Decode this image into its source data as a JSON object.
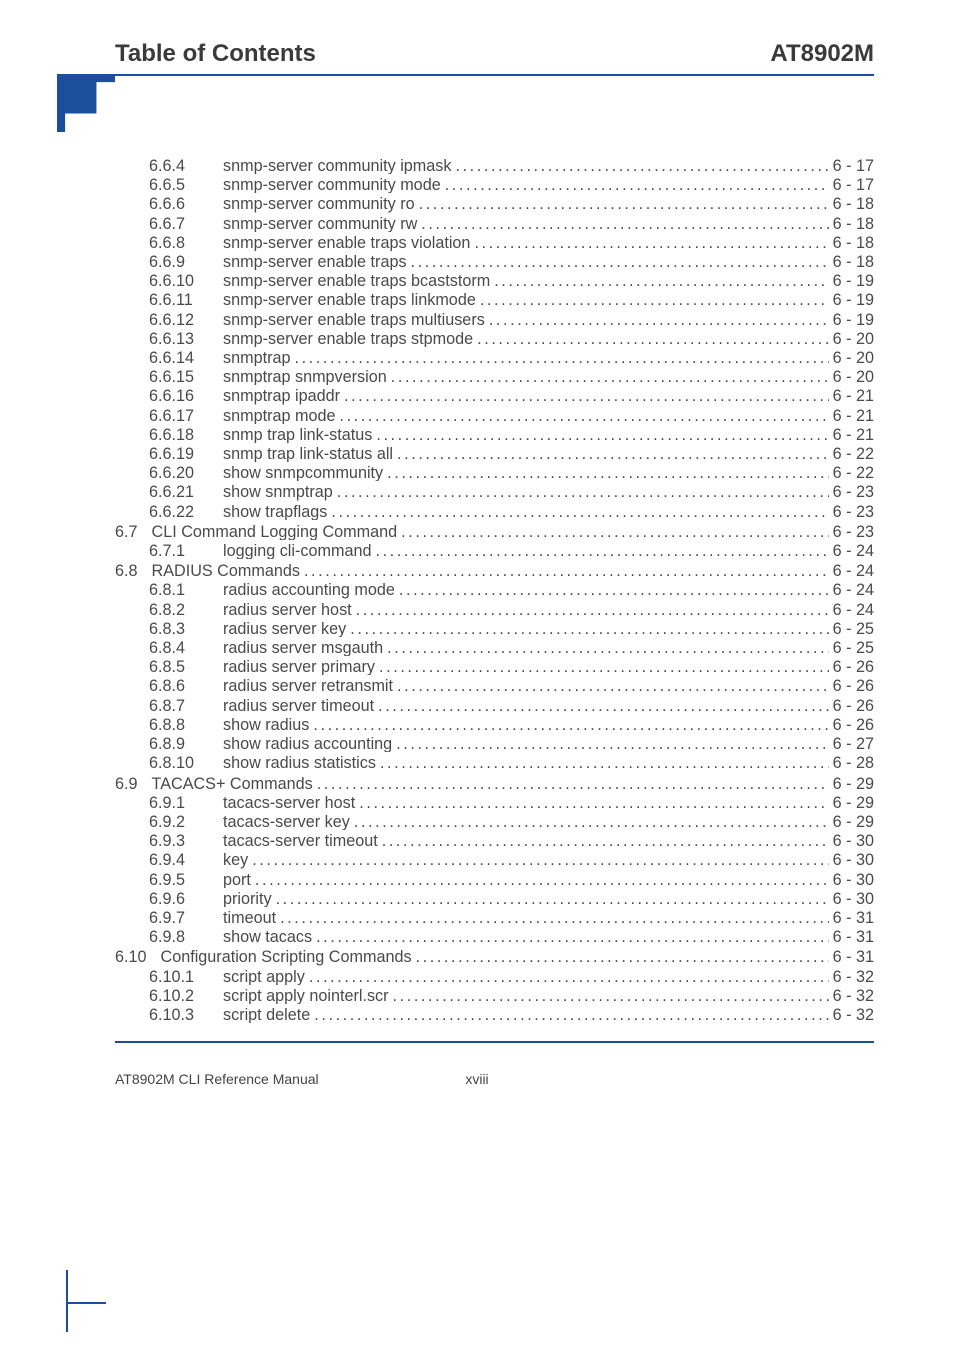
{
  "header": {
    "left": "Table of Contents",
    "right": "AT8902M"
  },
  "footer": {
    "left": "AT8902M CLI Reference Manual",
    "center": "xviii"
  },
  "colors": {
    "rule": "#1b4f9c",
    "text": "#3a3a3a"
  },
  "typography": {
    "header_fontsize": 24,
    "body_fontsize": 16.2,
    "footer_fontsize": 14
  },
  "toc": [
    {
      "block": [
        {
          "lvl": 2,
          "num": "6.6.4",
          "title": "snmp-server community ipmask",
          "page": "6 - 17"
        },
        {
          "lvl": 2,
          "num": "6.6.5",
          "title": "snmp-server community mode",
          "page": "6 - 17"
        },
        {
          "lvl": 2,
          "num": "6.6.6",
          "title": "snmp-server community ro",
          "page": "6 - 18"
        },
        {
          "lvl": 2,
          "num": "6.6.7",
          "title": "snmp-server community rw",
          "page": "6 - 18"
        },
        {
          "lvl": 2,
          "num": "6.6.8",
          "title": "snmp-server enable traps violation",
          "page": "6 - 18"
        },
        {
          "lvl": 2,
          "num": "6.6.9",
          "title": "snmp-server enable traps",
          "page": "6 - 18"
        },
        {
          "lvl": 2,
          "num": "6.6.10",
          "title": "snmp-server enable traps bcaststorm",
          "page": "6 - 19"
        },
        {
          "lvl": 2,
          "num": "6.6.11",
          "title": "snmp-server enable traps linkmode",
          "page": "6 - 19"
        },
        {
          "lvl": 2,
          "num": "6.6.12",
          "title": "snmp-server enable traps multiusers",
          "page": "6 - 19"
        },
        {
          "lvl": 2,
          "num": "6.6.13",
          "title": "snmp-server enable traps stpmode",
          "page": "6 - 20"
        },
        {
          "lvl": 2,
          "num": "6.6.14",
          "title": "snmptrap",
          "page": "6 - 20"
        },
        {
          "lvl": 2,
          "num": "6.6.15",
          "title": "snmptrap snmpversion",
          "page": "6 - 20"
        },
        {
          "lvl": 2,
          "num": "6.6.16",
          "title": "snmptrap ipaddr",
          "page": "6 - 21"
        },
        {
          "lvl": 2,
          "num": "6.6.17",
          "title": "snmptrap mode",
          "page": "6 - 21"
        },
        {
          "lvl": 2,
          "num": "6.6.18",
          "title": "snmp trap link-status",
          "page": "6 - 21"
        },
        {
          "lvl": 2,
          "num": "6.6.19",
          "title": "snmp trap link-status all",
          "page": "6 - 22"
        },
        {
          "lvl": 2,
          "num": "6.6.20",
          "title": "show snmpcommunity",
          "page": "6 - 22"
        },
        {
          "lvl": 2,
          "num": "6.6.21",
          "title": "show snmptrap",
          "page": "6 - 23"
        },
        {
          "lvl": 2,
          "num": "6.6.22",
          "title": "show trapflags",
          "page": "6 - 23"
        }
      ]
    },
    {
      "block": [
        {
          "lvl": 1,
          "num": "6.7",
          "title": "CLI Command Logging Command",
          "page": "6 - 23"
        },
        {
          "lvl": 2,
          "num": "6.7.1",
          "title": "logging cli-command",
          "page": "6 - 24"
        }
      ]
    },
    {
      "block": [
        {
          "lvl": 1,
          "num": "6.8",
          "title": "RADIUS Commands",
          "page": "6 - 24"
        },
        {
          "lvl": 2,
          "num": "6.8.1",
          "title": "radius accounting mode",
          "page": "6 - 24"
        },
        {
          "lvl": 2,
          "num": "6.8.2",
          "title": "radius server host",
          "page": "6 - 24"
        },
        {
          "lvl": 2,
          "num": "6.8.3",
          "title": "radius server key",
          "page": "6 - 25"
        },
        {
          "lvl": 2,
          "num": "6.8.4",
          "title": "radius server msgauth",
          "page": "6 - 25"
        },
        {
          "lvl": 2,
          "num": "6.8.5",
          "title": "radius server primary",
          "page": "6 - 26"
        },
        {
          "lvl": 2,
          "num": "6.8.6",
          "title": "radius server retransmit",
          "page": "6 - 26"
        },
        {
          "lvl": 2,
          "num": "6.8.7",
          "title": "radius server timeout",
          "page": "6 - 26"
        },
        {
          "lvl": 2,
          "num": "6.8.8",
          "title": "show radius",
          "page": "6 - 26"
        },
        {
          "lvl": 2,
          "num": "6.8.9",
          "title": "show radius accounting",
          "page": "6 - 27"
        },
        {
          "lvl": 2,
          "num": "6.8.10",
          "title": "show radius statistics",
          "page": "6 - 28"
        }
      ]
    },
    {
      "block": [
        {
          "lvl": 1,
          "num": "6.9",
          "title": "TACACS+ Commands",
          "page": "6 - 29"
        },
        {
          "lvl": 2,
          "num": "6.9.1",
          "title": "tacacs-server host",
          "page": "6 - 29"
        },
        {
          "lvl": 2,
          "num": "6.9.2",
          "title": "tacacs-server key",
          "page": "6 - 29"
        },
        {
          "lvl": 2,
          "num": "6.9.3",
          "title": "tacacs-server timeout",
          "page": "6 - 30"
        },
        {
          "lvl": 2,
          "num": "6.9.4",
          "title": "key",
          "page": "6 - 30"
        },
        {
          "lvl": 2,
          "num": "6.9.5",
          "title": "port",
          "page": "6 - 30"
        },
        {
          "lvl": 2,
          "num": "6.9.6",
          "title": "priority",
          "page": "6 - 30"
        },
        {
          "lvl": 2,
          "num": "6.9.7",
          "title": "timeout",
          "page": "6 - 31"
        },
        {
          "lvl": 2,
          "num": "6.9.8",
          "title": "show tacacs",
          "page": "6 - 31"
        }
      ]
    },
    {
      "block": [
        {
          "lvl": 1,
          "num": "6.10",
          "title": "Configuration Scripting Commands",
          "page": "6 - 31"
        },
        {
          "lvl": 2,
          "num": "6.10.1",
          "title": "script apply",
          "page": "6 - 32"
        },
        {
          "lvl": 2,
          "num": "6.10.2",
          "title": "script apply nointerl.scr",
          "page": "6 - 32"
        },
        {
          "lvl": 2,
          "num": "6.10.3",
          "title": "script delete",
          "page": "6 - 32"
        }
      ]
    }
  ]
}
